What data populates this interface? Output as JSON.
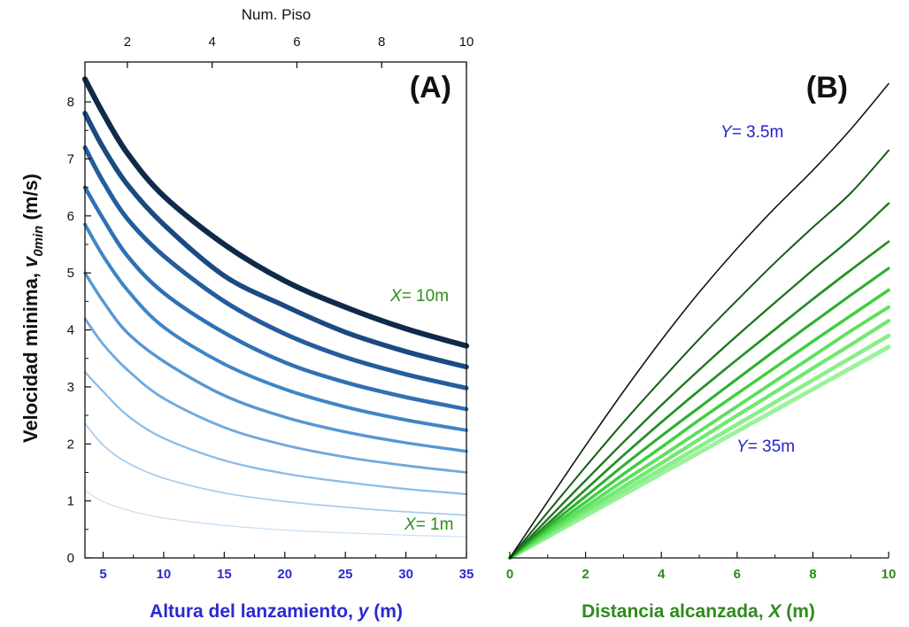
{
  "ylabel_main": "Velocidad minima, ",
  "ylabel_sym": "v",
  "ylabel_sub": "0min",
  "ylabel_unit": " (m/s)",
  "chart_data": [
    {
      "id": "A",
      "type": "line",
      "panel_label": "(A)",
      "xlabel_main": "Altura del lanzamiento, ",
      "xlabel_sym": "y",
      "xlabel_unit": " (m)",
      "top_axis_label": "Num. Piso",
      "xlim": [
        3.5,
        35
      ],
      "ylim": [
        0,
        8.7
      ],
      "top_xlim": [
        1,
        10
      ],
      "xticks": [
        5,
        10,
        15,
        20,
        25,
        30,
        35
      ],
      "yticks": [
        0,
        1,
        2,
        3,
        4,
        5,
        6,
        7,
        8
      ],
      "top_xticks": [
        2,
        4,
        6,
        8,
        10
      ],
      "annotations": [
        {
          "italic": "X",
          "text": "= 10m",
          "color": "#2e8b1e",
          "at_x": 28,
          "at_y": 4.45
        },
        {
          "italic": "X",
          "text": "= 1m",
          "color": "#2e8b1e",
          "at_x": 28.5,
          "at_y": 0.55
        }
      ],
      "x": [
        3.5,
        5,
        7,
        10,
        15,
        20,
        25,
        30,
        35
      ],
      "series": [
        {
          "color": "#c8dff5",
          "values": [
            1.18,
            0.99,
            0.84,
            0.7,
            0.57,
            0.49,
            0.44,
            0.4,
            0.37
          ]
        },
        {
          "color": "#a8cdee",
          "values": [
            2.36,
            1.98,
            1.67,
            1.4,
            1.14,
            0.99,
            0.89,
            0.81,
            0.75
          ]
        },
        {
          "color": "#8bbce6",
          "values": [
            3.26,
            2.92,
            2.5,
            2.1,
            1.71,
            1.48,
            1.33,
            1.21,
            1.12
          ]
        },
        {
          "color": "#6fa9dd",
          "values": [
            4.2,
            3.75,
            3.3,
            2.8,
            2.29,
            1.98,
            1.77,
            1.62,
            1.5
          ]
        },
        {
          "color": "#5597d3",
          "values": [
            5.0,
            4.5,
            3.95,
            3.45,
            2.85,
            2.47,
            2.21,
            2.02,
            1.87
          ]
        },
        {
          "color": "#3f85c6",
          "values": [
            5.85,
            5.3,
            4.7,
            4.05,
            3.4,
            2.96,
            2.65,
            2.42,
            2.24
          ]
        },
        {
          "color": "#2f71b4",
          "values": [
            6.5,
            5.95,
            5.3,
            4.65,
            3.95,
            3.43,
            3.08,
            2.82,
            2.61
          ]
        },
        {
          "color": "#245d9c",
          "values": [
            7.2,
            6.6,
            5.95,
            5.3,
            4.5,
            3.93,
            3.52,
            3.22,
            2.98
          ]
        },
        {
          "color": "#1b4a80",
          "values": [
            7.8,
            7.2,
            6.55,
            5.85,
            4.95,
            4.42,
            3.96,
            3.62,
            3.35
          ]
        },
        {
          "color": "#0f2a4a",
          "values": [
            8.4,
            7.8,
            7.1,
            6.35,
            5.5,
            4.86,
            4.4,
            4.02,
            3.72
          ]
        }
      ]
    },
    {
      "id": "B",
      "type": "line",
      "panel_label": "(B)",
      "xlabel_main": "Distancia alcanzada, ",
      "xlabel_sym": "X",
      "xlabel_unit": " (m)",
      "xlim": [
        0,
        10
      ],
      "ylim": [
        0,
        8.7
      ],
      "xticks": [
        0,
        2,
        4,
        6,
        8,
        10
      ],
      "annotations": [
        {
          "italic": "Y",
          "text": "= 3.5m",
          "color": "#2222cc",
          "at_x": 5.6,
          "at_y": 7.3
        },
        {
          "italic": "Y",
          "text": "= 35m",
          "color": "#2222cc",
          "at_x": 6.2,
          "at_y": 1.9
        }
      ],
      "x": [
        0,
        1,
        2,
        3,
        4,
        5,
        6,
        7,
        8,
        9,
        10
      ],
      "series": [
        {
          "color": "#9cf29c",
          "values": [
            0,
            0.37,
            0.74,
            1.11,
            1.48,
            1.85,
            2.22,
            2.59,
            2.96,
            3.33,
            3.7
          ]
        },
        {
          "color": "#8aef8a",
          "values": [
            0,
            0.39,
            0.78,
            1.17,
            1.56,
            1.95,
            2.34,
            2.73,
            3.12,
            3.51,
            3.9
          ]
        },
        {
          "color": "#72e872",
          "values": [
            0,
            0.42,
            0.83,
            1.25,
            1.66,
            2.08,
            2.5,
            2.91,
            3.33,
            3.74,
            4.16
          ]
        },
        {
          "color": "#5ee05e",
          "values": [
            0,
            0.45,
            0.9,
            1.35,
            1.78,
            2.22,
            2.66,
            3.1,
            3.54,
            3.98,
            4.4
          ]
        },
        {
          "color": "#3fcf3f",
          "values": [
            0,
            0.5,
            0.98,
            1.47,
            1.94,
            2.42,
            2.88,
            3.34,
            3.8,
            4.25,
            4.7
          ]
        },
        {
          "color": "#2fae2f",
          "values": [
            0,
            0.55,
            1.08,
            1.62,
            2.14,
            2.64,
            3.14,
            3.64,
            4.13,
            4.61,
            5.08
          ]
        },
        {
          "color": "#268f26",
          "values": [
            0,
            0.6,
            1.2,
            1.8,
            2.38,
            2.94,
            3.48,
            4.01,
            4.54,
            5.05,
            5.55
          ]
        },
        {
          "color": "#1f751f",
          "values": [
            0,
            0.68,
            1.36,
            2.03,
            2.68,
            3.3,
            3.9,
            4.48,
            5.05,
            5.6,
            6.22
          ]
        },
        {
          "color": "#175a17",
          "values": [
            0,
            0.8,
            1.6,
            2.38,
            3.12,
            3.84,
            4.52,
            5.18,
            5.8,
            6.4,
            7.15
          ]
        },
        {
          "color": "#0a1a0a",
          "values": [
            0,
            0.99,
            1.97,
            2.92,
            3.82,
            4.66,
            5.43,
            6.14,
            6.8,
            7.52,
            8.32
          ]
        }
      ]
    }
  ]
}
